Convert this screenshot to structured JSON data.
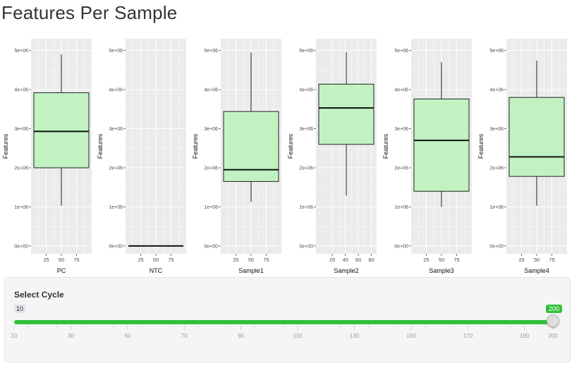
{
  "page": {
    "title": "Features Per Sample"
  },
  "colors": {
    "box_fill": "#c2f2c2",
    "panel_bg": "#ebebeb",
    "grid": "#ffffff",
    "slider_accent": "#2fc239",
    "slider_track": "#e1e4e9"
  },
  "chart_data": [
    {
      "type": "box",
      "xlabel": "PC",
      "ylabel": "Features",
      "xlim": [
        0,
        100
      ],
      "xticks": [
        25,
        50,
        75
      ],
      "ylim": [
        -200000,
        5300000
      ],
      "yticks": [
        "0e+00",
        "1e+06",
        "2e+06",
        "3e+06",
        "4e+06",
        "5e+06"
      ],
      "box": {
        "min": 1030000,
        "q1": 2000000,
        "median": 2930000,
        "q3": 3920000,
        "max": 4900000
      }
    },
    {
      "type": "box",
      "xlabel": "NTC",
      "ylabel": "Features",
      "xlim": [
        0,
        100
      ],
      "xticks": [
        25,
        50,
        75
      ],
      "ylim": [
        -200000,
        5300000
      ],
      "yticks": [
        "0e+00",
        "1e+06",
        "2e+06",
        "3e+06",
        "4e+06",
        "5e+06"
      ],
      "box": {
        "min": 0,
        "q1": 0,
        "median": 0,
        "q3": 0,
        "max": 0
      }
    },
    {
      "type": "box",
      "xlabel": "Sample1",
      "ylabel": "Features",
      "xlim": [
        0,
        100
      ],
      "xticks": [
        25,
        50,
        75
      ],
      "ylim": [
        -200000,
        5300000
      ],
      "yticks": [
        "0e+00",
        "1e+06",
        "2e+06",
        "3e+06",
        "4e+06",
        "5e+06"
      ],
      "box": {
        "min": 1130000,
        "q1": 1650000,
        "median": 1950000,
        "q3": 3440000,
        "max": 4950000
      }
    },
    {
      "type": "box",
      "xlabel": "Sample2",
      "ylabel": "Features",
      "xlim": [
        -5,
        88
      ],
      "xticks": [
        20,
        40,
        60,
        80
      ],
      "ylim": [
        -200000,
        5300000
      ],
      "yticks": [
        "0e+00",
        "1e+06",
        "2e+06",
        "3e+06",
        "4e+06",
        "5e+06"
      ],
      "box": {
        "min": 1290000,
        "q1": 2600000,
        "median": 3530000,
        "q3": 4140000,
        "max": 4960000
      }
    },
    {
      "type": "box",
      "xlabel": "Sample3",
      "ylabel": "Features",
      "xlim": [
        0,
        100
      ],
      "xticks": [
        25,
        50,
        75
      ],
      "ylim": [
        -200000,
        5300000
      ],
      "yticks": [
        "0e+00",
        "1e+06",
        "2e+06",
        "3e+06",
        "4e+06",
        "5e+06"
      ],
      "box": {
        "min": 1000000,
        "q1": 1400000,
        "median": 2700000,
        "q3": 3760000,
        "max": 4700000
      }
    },
    {
      "type": "box",
      "xlabel": "Sample4",
      "ylabel": "Features",
      "xlim": [
        0,
        100
      ],
      "xticks": [
        25,
        50,
        75
      ],
      "ylim": [
        -200000,
        5300000
      ],
      "yticks": [
        "0e+00",
        "1e+06",
        "2e+06",
        "3e+06",
        "4e+06",
        "5e+06"
      ],
      "box": {
        "min": 1030000,
        "q1": 1780000,
        "median": 2280000,
        "q3": 3800000,
        "max": 4740000
      }
    }
  ],
  "slider": {
    "label": "Select Cycle",
    "min": 10,
    "max": 200,
    "value": 200,
    "min_label": "10",
    "value_label": "200",
    "grid_labels": [
      "10",
      "30",
      "50",
      "70",
      "90",
      "110",
      "130",
      "150",
      "170",
      "190",
      "200"
    ]
  }
}
